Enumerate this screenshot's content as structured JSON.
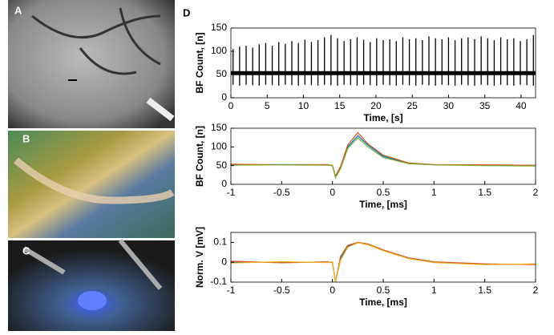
{
  "panel_label": "D",
  "images": [
    {
      "label": "A"
    },
    {
      "label": "B"
    },
    {
      "label": "C"
    }
  ],
  "chart_data": [
    {
      "type": "spikes",
      "xlabel": "Time, [s]",
      "ylabel": "BF Count, [n]",
      "xlim": [
        0,
        42
      ],
      "ylim": [
        0,
        150
      ],
      "xticks": [
        0,
        5,
        10,
        15,
        20,
        25,
        30,
        35,
        40
      ],
      "yticks": [
        0,
        50,
        100,
        150
      ],
      "color": "#000000",
      "baseline": 53,
      "x": [
        0.3,
        1.2,
        2.1,
        3.0,
        3.9,
        4.8,
        5.7,
        6.6,
        7.5,
        8.4,
        9.3,
        10.2,
        11.1,
        12.0,
        12.9,
        13.8,
        14.7,
        15.6,
        16.5,
        17.4,
        18.3,
        19.2,
        20.1,
        21.0,
        21.9,
        22.8,
        23.7,
        24.6,
        25.5,
        26.4,
        27.3,
        28.2,
        29.1,
        30.0,
        30.9,
        31.8,
        32.7,
        33.6,
        34.5,
        35.4,
        36.3,
        37.2,
        38.1,
        39.0,
        39.9,
        40.8,
        41.7
      ],
      "peaks": [
        105,
        110,
        112,
        108,
        115,
        118,
        112,
        120,
        116,
        122,
        118,
        125,
        120,
        124,
        130,
        135,
        128,
        122,
        126,
        130,
        125,
        120,
        128,
        124,
        126,
        122,
        130,
        126,
        128,
        124,
        132,
        128,
        126,
        130,
        124,
        128,
        130,
        126,
        132,
        128,
        124,
        130,
        126,
        128,
        122,
        126,
        135
      ],
      "troughs": [
        28,
        26,
        28,
        27,
        26,
        28,
        27,
        26,
        28,
        27,
        26,
        28,
        27,
        26,
        28,
        27,
        26,
        28,
        27,
        26,
        28,
        27,
        26,
        28,
        27,
        26,
        28,
        27,
        26,
        28,
        27,
        26,
        28,
        27,
        26,
        28,
        27,
        26,
        28,
        27,
        26,
        28,
        27,
        26,
        28,
        27,
        26
      ]
    },
    {
      "type": "line",
      "xlabel": "Time, [ms]",
      "ylabel": "BF Count, [n]",
      "xlim": [
        -1,
        2
      ],
      "ylim": [
        0,
        150
      ],
      "xticks": [
        -1,
        -0.5,
        0,
        0.5,
        1,
        1.5,
        2
      ],
      "yticks": [
        0,
        50,
        100,
        150
      ],
      "x": [
        -1,
        -0.5,
        -0.05,
        0,
        0.03,
        0.08,
        0.15,
        0.25,
        0.35,
        0.5,
        0.75,
        1,
        1.5,
        2
      ],
      "series": [
        {
          "color": "#0072bd",
          "values": [
            52,
            53,
            52,
            50,
            20,
            45,
            100,
            130,
            105,
            75,
            56,
            52,
            51,
            50
          ]
        },
        {
          "color": "#d95319",
          "values": [
            54,
            52,
            53,
            49,
            22,
            48,
            105,
            138,
            108,
            78,
            57,
            53,
            52,
            51
          ]
        },
        {
          "color": "#77ac30",
          "values": [
            51,
            52,
            51,
            51,
            18,
            42,
            96,
            124,
            100,
            72,
            55,
            52,
            50,
            49
          ]
        }
      ]
    },
    {
      "type": "line",
      "xlabel": "Time, [ms]",
      "ylabel": "Norm. V [mV]",
      "xlim": [
        -1,
        2
      ],
      "ylim": [
        -0.1,
        0.15
      ],
      "xticks": [
        -1,
        -0.5,
        0,
        0.5,
        1,
        1.5,
        2
      ],
      "yticks": [
        -0.1,
        0,
        0.1
      ],
      "x": [
        -1,
        -0.5,
        -0.05,
        0,
        0.03,
        0.08,
        0.15,
        0.25,
        0.35,
        0.5,
        0.75,
        1,
        1.5,
        2
      ],
      "series": [
        {
          "color": "#0072bd",
          "values": [
            0,
            0,
            0,
            0,
            -0.1,
            0.02,
            0.08,
            0.1,
            0.09,
            0.06,
            0.02,
            0,
            -0.01,
            -0.01
          ]
        },
        {
          "color": "#d95319",
          "values": [
            0.005,
            -0.003,
            0.002,
            -0.002,
            -0.1,
            0.03,
            0.085,
            0.1,
            0.092,
            0.062,
            0.022,
            0.002,
            -0.008,
            -0.012
          ]
        },
        {
          "color": "#edb120",
          "values": [
            -0.004,
            0.003,
            -0.002,
            0.002,
            -0.1,
            0.01,
            0.075,
            0.098,
            0.088,
            0.058,
            0.018,
            -0.002,
            -0.012,
            -0.008
          ]
        }
      ]
    }
  ]
}
